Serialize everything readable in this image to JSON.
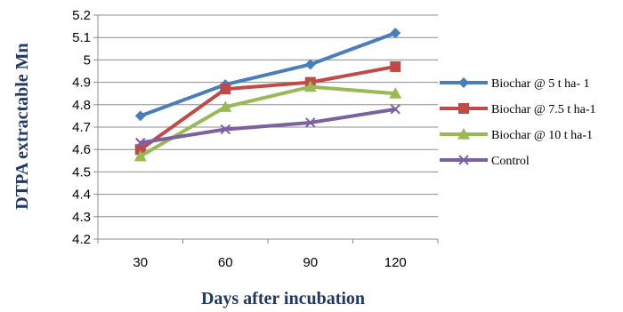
{
  "chart_data": {
    "type": "line",
    "title": "",
    "xlabel": "Days after incubation",
    "ylabel": "DTPA extractable Mn",
    "categories": [
      "30",
      "60",
      "90",
      "120"
    ],
    "ylim": [
      4.2,
      5.2
    ],
    "yticks": [
      "4.2",
      "4.3",
      "4.4",
      "4.5",
      "4.6",
      "4.7",
      "4.8",
      "4.9",
      "5",
      "5.1",
      "5.2"
    ],
    "grid": true,
    "legend_position": "right",
    "series": [
      {
        "name": "Biochar @ 5 t ha- 1",
        "values": [
          4.75,
          4.89,
          4.98,
          5.12
        ],
        "color": "#4a7ebb",
        "marker": "diamond"
      },
      {
        "name": "Biochar @ 7.5 t ha-1",
        "values": [
          4.6,
          4.87,
          4.9,
          4.97
        ],
        "color": "#be4b48",
        "marker": "square"
      },
      {
        "name": "Biochar @ 10 t ha-1",
        "values": [
          4.57,
          4.79,
          4.88,
          4.85
        ],
        "color": "#98b954",
        "marker": "triangle"
      },
      {
        "name": "Control",
        "values": [
          4.63,
          4.69,
          4.72,
          4.78
        ],
        "color": "#7d60a0",
        "marker": "x"
      }
    ]
  }
}
